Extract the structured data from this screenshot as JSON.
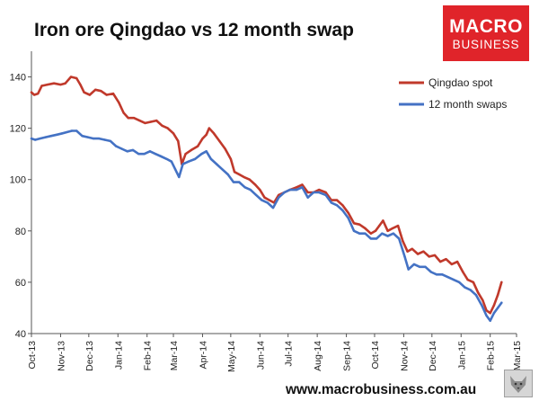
{
  "header": {
    "title": "Iron ore Qingdao vs 12 month swap"
  },
  "brand": {
    "line1": "MACRO",
    "line2": "BUSINESS",
    "color": "#e0242a"
  },
  "footer": {
    "url": "www.macrobusiness.com.au"
  },
  "chart_data": {
    "type": "line",
    "title": "Iron ore Qingdao vs 12 month swap",
    "xlabel": "",
    "ylabel": "",
    "ylim": [
      40,
      150
    ],
    "yticks": [
      40,
      60,
      80,
      100,
      120,
      140
    ],
    "xlim": [
      "2013-10-01",
      "2015-03-01"
    ],
    "xticks": [
      {
        "date": "2013-10-01",
        "label": "Oct-13"
      },
      {
        "date": "2013-11-01",
        "label": "Nov-13"
      },
      {
        "date": "2013-12-01",
        "label": "Dec-13"
      },
      {
        "date": "2014-01-01",
        "label": "Jan-14"
      },
      {
        "date": "2014-02-01",
        "label": "Feb-14"
      },
      {
        "date": "2014-03-01",
        "label": "Mar-14"
      },
      {
        "date": "2014-04-01",
        "label": "Apr-14"
      },
      {
        "date": "2014-05-01",
        "label": "May-14"
      },
      {
        "date": "2014-06-01",
        "label": "Jun-14"
      },
      {
        "date": "2014-07-01",
        "label": "Jul-14"
      },
      {
        "date": "2014-08-01",
        "label": "Aug-14"
      },
      {
        "date": "2014-09-01",
        "label": "Sep-14"
      },
      {
        "date": "2014-10-01",
        "label": "Oct-14"
      },
      {
        "date": "2014-11-01",
        "label": "Nov-14"
      },
      {
        "date": "2014-12-01",
        "label": "Dec-14"
      },
      {
        "date": "2015-01-01",
        "label": "Jan-15"
      },
      {
        "date": "2015-02-01",
        "label": "Feb-15"
      },
      {
        "date": "2015-03-01",
        "label": "Mar-15"
      }
    ],
    "grid": false,
    "legend_position": "top-right",
    "series": [
      {
        "name": "Qingdao spot",
        "color": "#c0392b",
        "points": [
          [
            "2013-10-01",
            134
          ],
          [
            "2013-10-04",
            133
          ],
          [
            "2013-10-08",
            133.5
          ],
          [
            "2013-10-12",
            136.5
          ],
          [
            "2013-10-18",
            137
          ],
          [
            "2013-10-25",
            137.5
          ],
          [
            "2013-11-01",
            137
          ],
          [
            "2013-11-06",
            137.5
          ],
          [
            "2013-11-12",
            140
          ],
          [
            "2013-11-18",
            139.5
          ],
          [
            "2013-11-22",
            137
          ],
          [
            "2013-11-26",
            134
          ],
          [
            "2013-12-02",
            133
          ],
          [
            "2013-12-08",
            135
          ],
          [
            "2013-12-14",
            134.5
          ],
          [
            "2013-12-20",
            133
          ],
          [
            "2013-12-27",
            133.5
          ],
          [
            "2014-01-02",
            130
          ],
          [
            "2014-01-07",
            126
          ],
          [
            "2014-01-12",
            124
          ],
          [
            "2014-01-18",
            124
          ],
          [
            "2014-01-24",
            123
          ],
          [
            "2014-01-30",
            122
          ],
          [
            "2014-02-05",
            122.5
          ],
          [
            "2014-02-11",
            123
          ],
          [
            "2014-02-17",
            121
          ],
          [
            "2014-02-23",
            120
          ],
          [
            "2014-03-01",
            118
          ],
          [
            "2014-03-06",
            115
          ],
          [
            "2014-03-10",
            106
          ],
          [
            "2014-03-14",
            110
          ],
          [
            "2014-03-20",
            111.5
          ],
          [
            "2014-03-27",
            113
          ],
          [
            "2014-04-01",
            116
          ],
          [
            "2014-04-05",
            117.5
          ],
          [
            "2014-04-08",
            120
          ],
          [
            "2014-04-13",
            118
          ],
          [
            "2014-04-19",
            115
          ],
          [
            "2014-04-25",
            112
          ],
          [
            "2014-05-01",
            108
          ],
          [
            "2014-05-05",
            103
          ],
          [
            "2014-05-10",
            102
          ],
          [
            "2014-05-15",
            101
          ],
          [
            "2014-05-21",
            100
          ],
          [
            "2014-05-27",
            98
          ],
          [
            "2014-06-01",
            96
          ],
          [
            "2014-06-06",
            93
          ],
          [
            "2014-06-11",
            92
          ],
          [
            "2014-06-16",
            91
          ],
          [
            "2014-06-21",
            94
          ],
          [
            "2014-06-27",
            95
          ],
          [
            "2014-07-03",
            96
          ],
          [
            "2014-07-10",
            97
          ],
          [
            "2014-07-16",
            98
          ],
          [
            "2014-07-22",
            95
          ],
          [
            "2014-07-28",
            95
          ],
          [
            "2014-08-03",
            96
          ],
          [
            "2014-08-10",
            95
          ],
          [
            "2014-08-16",
            92
          ],
          [
            "2014-08-22",
            92
          ],
          [
            "2014-08-28",
            90
          ],
          [
            "2014-09-03",
            87
          ],
          [
            "2014-09-09",
            83
          ],
          [
            "2014-09-15",
            82.5
          ],
          [
            "2014-09-21",
            81
          ],
          [
            "2014-09-27",
            79
          ],
          [
            "2014-10-02",
            80
          ],
          [
            "2014-10-06",
            82
          ],
          [
            "2014-10-10",
            84
          ],
          [
            "2014-10-15",
            80
          ],
          [
            "2014-10-20",
            81
          ],
          [
            "2014-10-26",
            82
          ],
          [
            "2014-10-31",
            76
          ],
          [
            "2014-11-05",
            72
          ],
          [
            "2014-11-10",
            73
          ],
          [
            "2014-11-16",
            71
          ],
          [
            "2014-11-22",
            72
          ],
          [
            "2014-11-28",
            70
          ],
          [
            "2014-12-04",
            70.5
          ],
          [
            "2014-12-10",
            68
          ],
          [
            "2014-12-16",
            69
          ],
          [
            "2014-12-22",
            67
          ],
          [
            "2014-12-28",
            68
          ],
          [
            "2015-01-03",
            64
          ],
          [
            "2015-01-08",
            61
          ],
          [
            "2015-01-14",
            60
          ],
          [
            "2015-01-19",
            56
          ],
          [
            "2015-01-24",
            53
          ],
          [
            "2015-01-28",
            49
          ],
          [
            "2015-02-01",
            48
          ],
          [
            "2015-02-05",
            51
          ],
          [
            "2015-02-09",
            55
          ],
          [
            "2015-02-13",
            60
          ]
        ]
      },
      {
        "name": "12 month swaps",
        "color": "#4472c4",
        "points": [
          [
            "2013-10-01",
            116
          ],
          [
            "2013-10-05",
            115.5
          ],
          [
            "2013-10-10",
            116
          ],
          [
            "2013-10-16",
            116.5
          ],
          [
            "2013-10-22",
            117
          ],
          [
            "2013-10-28",
            117.5
          ],
          [
            "2013-11-03",
            118
          ],
          [
            "2013-11-08",
            118.5
          ],
          [
            "2013-11-13",
            119
          ],
          [
            "2013-11-18",
            119
          ],
          [
            "2013-11-24",
            117
          ],
          [
            "2013-11-30",
            116.5
          ],
          [
            "2013-12-06",
            116
          ],
          [
            "2013-12-12",
            116
          ],
          [
            "2013-12-18",
            115.5
          ],
          [
            "2013-12-24",
            115
          ],
          [
            "2013-12-30",
            113
          ],
          [
            "2014-01-05",
            112
          ],
          [
            "2014-01-11",
            111
          ],
          [
            "2014-01-17",
            111.5
          ],
          [
            "2014-01-23",
            110
          ],
          [
            "2014-01-29",
            110
          ],
          [
            "2014-02-04",
            111
          ],
          [
            "2014-02-10",
            110
          ],
          [
            "2014-02-16",
            109
          ],
          [
            "2014-02-22",
            108
          ],
          [
            "2014-02-27",
            107
          ],
          [
            "2014-03-03",
            104
          ],
          [
            "2014-03-07",
            101
          ],
          [
            "2014-03-11",
            106
          ],
          [
            "2014-03-17",
            107
          ],
          [
            "2014-03-24",
            108
          ],
          [
            "2014-03-31",
            110
          ],
          [
            "2014-04-05",
            111
          ],
          [
            "2014-04-10",
            108
          ],
          [
            "2014-04-16",
            106
          ],
          [
            "2014-04-22",
            104
          ],
          [
            "2014-04-28",
            102
          ],
          [
            "2014-05-04",
            99
          ],
          [
            "2014-05-10",
            99
          ],
          [
            "2014-05-16",
            97
          ],
          [
            "2014-05-22",
            96
          ],
          [
            "2014-05-28",
            94
          ],
          [
            "2014-06-03",
            92
          ],
          [
            "2014-06-09",
            91
          ],
          [
            "2014-06-15",
            89
          ],
          [
            "2014-06-21",
            93
          ],
          [
            "2014-06-27",
            95
          ],
          [
            "2014-07-03",
            96
          ],
          [
            "2014-07-10",
            96
          ],
          [
            "2014-07-16",
            97
          ],
          [
            "2014-07-22",
            93
          ],
          [
            "2014-07-28",
            95
          ],
          [
            "2014-08-03",
            95
          ],
          [
            "2014-08-10",
            94
          ],
          [
            "2014-08-16",
            91
          ],
          [
            "2014-08-22",
            90
          ],
          [
            "2014-08-28",
            88
          ],
          [
            "2014-09-03",
            85
          ],
          [
            "2014-09-09",
            80
          ],
          [
            "2014-09-15",
            79
          ],
          [
            "2014-09-21",
            79
          ],
          [
            "2014-09-27",
            77
          ],
          [
            "2014-10-03",
            77
          ],
          [
            "2014-10-09",
            79
          ],
          [
            "2014-10-15",
            78
          ],
          [
            "2014-10-21",
            79
          ],
          [
            "2014-10-27",
            77
          ],
          [
            "2014-11-02",
            70
          ],
          [
            "2014-11-06",
            65
          ],
          [
            "2014-11-12",
            67
          ],
          [
            "2014-11-18",
            66
          ],
          [
            "2014-11-24",
            66
          ],
          [
            "2014-11-30",
            64
          ],
          [
            "2014-12-06",
            63
          ],
          [
            "2014-12-12",
            63
          ],
          [
            "2014-12-18",
            62
          ],
          [
            "2014-12-24",
            61
          ],
          [
            "2014-12-30",
            60
          ],
          [
            "2015-01-05",
            58
          ],
          [
            "2015-01-11",
            57
          ],
          [
            "2015-01-17",
            55
          ],
          [
            "2015-01-23",
            51
          ],
          [
            "2015-01-28",
            47
          ],
          [
            "2015-02-01",
            45
          ],
          [
            "2015-02-05",
            48
          ],
          [
            "2015-02-09",
            50
          ],
          [
            "2015-02-13",
            52
          ]
        ]
      }
    ]
  }
}
